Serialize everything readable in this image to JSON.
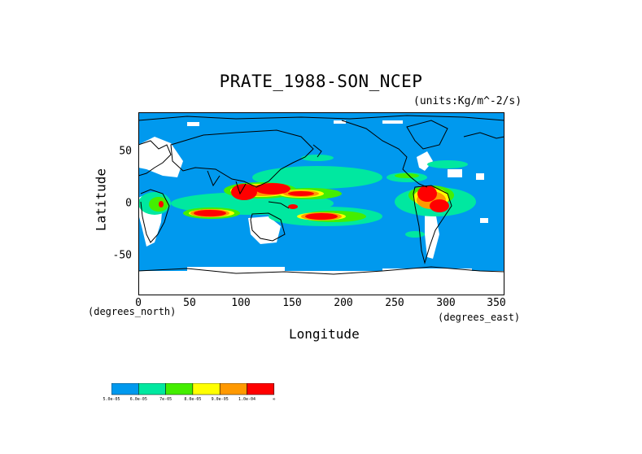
{
  "title": "PRATE_1988-SON_NCEP",
  "units": "(units:Kg/m^-2/s)",
  "ylabel": "Latitude",
  "xlabel": "Longitude",
  "xunit_left": "(degrees_north)",
  "xunit_right": "(degrees_east)",
  "xticks": [
    "0",
    "50",
    "100",
    "150",
    "200",
    "250",
    "300",
    "350"
  ],
  "yticks": [
    "50",
    "0",
    "-50"
  ],
  "colorbar": {
    "colors": [
      "#0099ee",
      "#00e8a0",
      "#44ee00",
      "#ffff00",
      "#ff9900",
      "#ff0000"
    ],
    "labels": [
      "5.0e-05",
      "6.0e-05",
      "7e-05",
      "8.0e-05",
      "9.0e-05",
      "1.0e-04",
      "∞"
    ]
  },
  "map": {
    "lon_range": [
      0,
      360
    ],
    "lat_range": [
      -90,
      90
    ],
    "background_color": "#0099ee",
    "missing_color": "#ffffff"
  }
}
